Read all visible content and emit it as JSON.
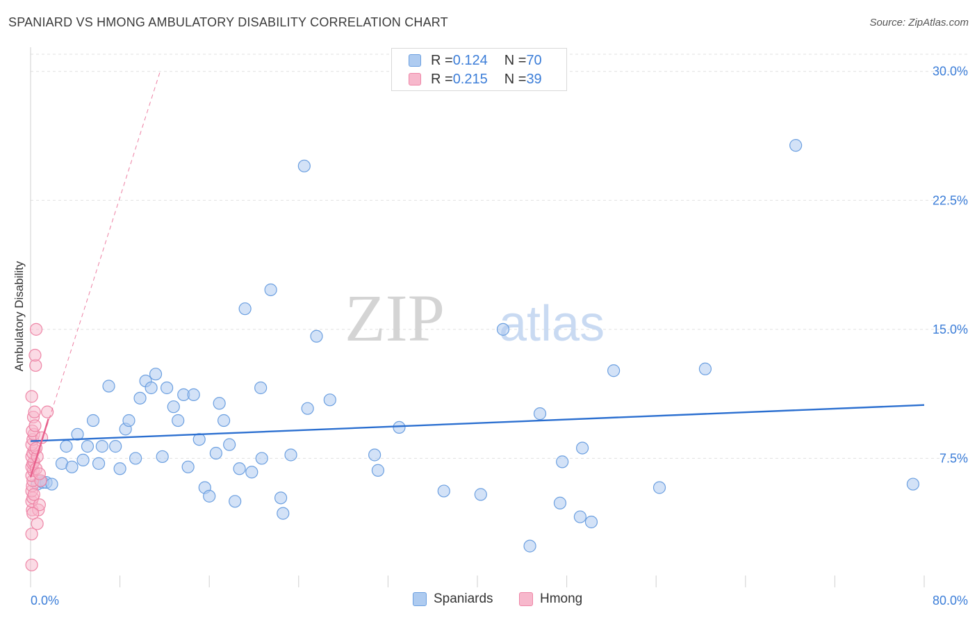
{
  "title": "SPANIARD VS HMONG AMBULATORY DISABILITY CORRELATION CHART",
  "source": "Source: ZipAtlas.com",
  "watermark": {
    "part1": "ZIP",
    "part2": "atlas"
  },
  "legend_top": {
    "rows": [
      {
        "r_label": "R = ",
        "r_value": "0.124",
        "n_label": "N = ",
        "n_value": "70"
      },
      {
        "r_label": "R = ",
        "r_value": "0.215",
        "n_label": "N = ",
        "n_value": "39"
      }
    ]
  },
  "legend_bottom": {
    "items": [
      "Spaniards",
      "Hmong"
    ]
  },
  "colors": {
    "blue_fill": "#aecbf0",
    "blue_stroke": "#6b9fe0",
    "blue_line": "#2b6fd0",
    "pink_fill": "#f7b8cc",
    "pink_stroke": "#ee85a6",
    "pink_line": "#e8608c",
    "tick_text": "#3b7dd8",
    "grid": "#e0e0e0"
  },
  "chart_data": {
    "type": "scatter",
    "title": "SPANIARD VS HMONG AMBULATORY DISABILITY CORRELATION CHART",
    "xlabel": "",
    "ylabel": "Ambulatory Disability",
    "xlim": [
      0,
      80
    ],
    "ylim": [
      0,
      31
    ],
    "x_tick_labels": [
      {
        "value": 0,
        "label": "0.0%"
      },
      {
        "value": 80,
        "label": "80.0%"
      }
    ],
    "y_ticks": [
      {
        "value": 7.5,
        "label": "7.5%"
      },
      {
        "value": 15,
        "label": "15.0%"
      },
      {
        "value": 22.5,
        "label": "22.5%"
      },
      {
        "value": 30,
        "label": "30.0%"
      }
    ],
    "series": [
      {
        "name": "Spaniards",
        "r": 0.124,
        "n": 70,
        "trend": {
          "x": [
            0,
            80
          ],
          "y": [
            8.5,
            10.6
          ]
        },
        "points": [
          [
            0.6,
            6.0
          ],
          [
            1.1,
            6.1
          ],
          [
            1.4,
            6.1
          ],
          [
            1.9,
            6.0
          ],
          [
            2.8,
            7.2
          ],
          [
            3.2,
            8.2
          ],
          [
            3.7,
            7.0
          ],
          [
            4.2,
            8.9
          ],
          [
            4.7,
            7.4
          ],
          [
            5.1,
            8.2
          ],
          [
            5.6,
            9.7
          ],
          [
            6.1,
            7.2
          ],
          [
            6.4,
            8.2
          ],
          [
            7.0,
            11.7
          ],
          [
            7.6,
            8.2
          ],
          [
            8.0,
            6.9
          ],
          [
            8.5,
            9.2
          ],
          [
            8.8,
            9.7
          ],
          [
            9.4,
            7.5
          ],
          [
            9.8,
            11.0
          ],
          [
            10.3,
            12.0
          ],
          [
            10.8,
            11.6
          ],
          [
            11.2,
            12.4
          ],
          [
            11.8,
            7.6
          ],
          [
            12.2,
            11.6
          ],
          [
            12.8,
            10.5
          ],
          [
            13.2,
            9.7
          ],
          [
            13.7,
            11.2
          ],
          [
            14.1,
            7.0
          ],
          [
            14.6,
            11.2
          ],
          [
            15.1,
            8.6
          ],
          [
            15.6,
            5.8
          ],
          [
            16.0,
            5.3
          ],
          [
            16.6,
            7.8
          ],
          [
            16.9,
            10.7
          ],
          [
            17.3,
            9.7
          ],
          [
            17.8,
            8.3
          ],
          [
            18.3,
            5.0
          ],
          [
            18.7,
            6.9
          ],
          [
            19.2,
            16.2
          ],
          [
            19.8,
            6.7
          ],
          [
            20.6,
            11.6
          ],
          [
            20.7,
            7.5
          ],
          [
            21.5,
            17.3
          ],
          [
            22.4,
            5.2
          ],
          [
            22.6,
            4.3
          ],
          [
            23.3,
            7.7
          ],
          [
            24.5,
            24.5
          ],
          [
            24.8,
            10.4
          ],
          [
            25.6,
            14.6
          ],
          [
            26.8,
            10.9
          ],
          [
            30.8,
            7.7
          ],
          [
            31.1,
            6.8
          ],
          [
            33.0,
            9.3
          ],
          [
            37.0,
            5.6
          ],
          [
            40.3,
            5.4
          ],
          [
            42.3,
            15.0
          ],
          [
            44.7,
            2.4
          ],
          [
            45.6,
            10.1
          ],
          [
            47.4,
            4.9
          ],
          [
            47.6,
            7.3
          ],
          [
            49.2,
            4.1
          ],
          [
            49.4,
            8.1
          ],
          [
            50.2,
            3.8
          ],
          [
            52.2,
            12.6
          ],
          [
            56.3,
            5.8
          ],
          [
            60.4,
            12.7
          ],
          [
            68.5,
            25.7
          ],
          [
            79.0,
            6.0
          ],
          [
            0.9,
            6.2
          ]
        ]
      },
      {
        "name": "Hmong",
        "r": 0.215,
        "n": 39,
        "trend": {
          "x": [
            0,
            1.6
          ],
          "y": [
            6.4,
            9.8
          ]
        },
        "trend_extended": {
          "x": [
            0,
            11.6
          ],
          "y": [
            6.4,
            30.0
          ]
        },
        "points": [
          [
            0.1,
            1.3
          ],
          [
            0.1,
            3.1
          ],
          [
            0.15,
            4.5
          ],
          [
            0.1,
            5.0
          ],
          [
            0.2,
            5.2
          ],
          [
            0.1,
            5.6
          ],
          [
            0.15,
            5.9
          ],
          [
            0.2,
            6.2
          ],
          [
            0.1,
            6.5
          ],
          [
            0.25,
            6.8
          ],
          [
            0.1,
            7.0
          ],
          [
            0.2,
            7.2
          ],
          [
            0.3,
            7.3
          ],
          [
            0.1,
            7.6
          ],
          [
            0.2,
            7.8
          ],
          [
            0.35,
            8.0
          ],
          [
            0.1,
            8.3
          ],
          [
            0.2,
            8.6
          ],
          [
            0.3,
            8.9
          ],
          [
            0.15,
            9.1
          ],
          [
            0.25,
            9.9
          ],
          [
            0.35,
            10.2
          ],
          [
            0.1,
            11.1
          ],
          [
            0.45,
            12.9
          ],
          [
            0.4,
            13.5
          ],
          [
            0.5,
            15.0
          ],
          [
            0.6,
            3.7
          ],
          [
            0.7,
            4.5
          ],
          [
            0.8,
            4.8
          ],
          [
            0.9,
            6.2
          ],
          [
            1.0,
            8.7
          ],
          [
            1.5,
            10.2
          ],
          [
            0.5,
            6.9
          ],
          [
            0.3,
            5.4
          ],
          [
            0.6,
            7.6
          ],
          [
            0.2,
            4.3
          ],
          [
            0.4,
            9.4
          ],
          [
            0.8,
            6.6
          ],
          [
            0.5,
            8.1
          ]
        ]
      }
    ]
  }
}
